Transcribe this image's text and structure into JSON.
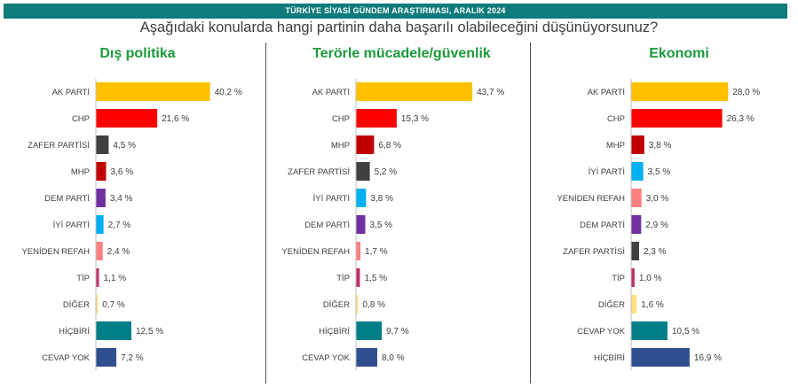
{
  "header": {
    "banner": "TÜRKİYE SİYASİ GÜNDEM ARAŞTIRMASI, ARALIK 2024",
    "question": "Aşağıdaki konularda hangi partinin daha başarılı olabileceğini düşünüyorsunuz?"
  },
  "chart_data": [
    {
      "type": "bar",
      "orientation": "horizontal",
      "title": "Dış politika",
      "categories": [
        "AK PARTİ",
        "CHP",
        "ZAFER PARTİSİ",
        "MHP",
        "DEM PARTİ",
        "İYİ PARTİ",
        "YENİDEN REFAH",
        "TİP",
        "DİĞER",
        "HİÇBİRİ",
        "CEVAP YOK"
      ],
      "values": [
        40.2,
        21.6,
        4.5,
        3.6,
        3.4,
        2.7,
        2.4,
        1.1,
        0.7,
        12.5,
        7.2
      ],
      "labels": [
        "40,2 %",
        "21,6 %",
        "4,5 %",
        "3,6 %",
        "3,4 %",
        "2,7 %",
        "2,4 %",
        "1,1 %",
        "0,7 %",
        "12,5 %",
        "7,2 %"
      ],
      "colors": [
        "#ffc000",
        "#ff0000",
        "#404040",
        "#c00000",
        "#7030a0",
        "#00b0f0",
        "#ff8080",
        "#c0306a",
        "#ffe080",
        "#007f86",
        "#2f4f8f"
      ],
      "xlim": [
        0,
        45
      ]
    },
    {
      "type": "bar",
      "orientation": "horizontal",
      "title": "Terörle mücadele/güvenlik",
      "categories": [
        "AK PARTİ",
        "CHP",
        "MHP",
        "ZAFER PARTİSİ",
        "İYİ PARTİ",
        "DEM PARTİ",
        "YENİDEN REFAH",
        "TİP",
        "DİĞER",
        "HİÇBİRİ",
        "CEVAP YOK"
      ],
      "values": [
        43.7,
        15.3,
        6.8,
        5.2,
        3.8,
        3.5,
        1.7,
        1.5,
        0.8,
        9.7,
        8.0
      ],
      "labels": [
        "43,7 %",
        "15,3 %",
        "6,8 %",
        "5,2 %",
        "3,8 %",
        "3,5 %",
        "1,7 %",
        "1,5 %",
        "0,8 %",
        "9,7 %",
        "8,0 %"
      ],
      "colors": [
        "#ffc000",
        "#ff0000",
        "#c00000",
        "#404040",
        "#00b0f0",
        "#7030a0",
        "#ff8080",
        "#c0306a",
        "#ffe080",
        "#007f86",
        "#2f4f8f"
      ],
      "xlim": [
        0,
        45
      ]
    },
    {
      "type": "bar",
      "orientation": "horizontal",
      "title": "Ekonomi",
      "categories": [
        "AK PARTİ",
        "CHP",
        "MHP",
        "İYİ PARTİ",
        "YENİDEN REFAH",
        "DEM PARTİ",
        "ZAFER PARTİSİ",
        "TİP",
        "DİĞER",
        "CEVAP YOK",
        "HİÇBİRİ"
      ],
      "values": [
        28.0,
        26.3,
        3.8,
        3.5,
        3.0,
        2.9,
        2.3,
        1.0,
        1.6,
        10.5,
        16.9
      ],
      "labels": [
        "28,0 %",
        "26,3 %",
        "3,8 %",
        "3,5 %",
        "3,0 %",
        "2,9 %",
        "2,3 %",
        "1,0 %",
        "1,6 %",
        "10,5 %",
        "16,9 %"
      ],
      "colors": [
        "#ffc000",
        "#ff0000",
        "#c00000",
        "#00b0f0",
        "#ff8080",
        "#7030a0",
        "#404040",
        "#c0306a",
        "#ffe080",
        "#007f86",
        "#2f4f8f"
      ],
      "xlim": [
        0,
        45
      ]
    }
  ]
}
